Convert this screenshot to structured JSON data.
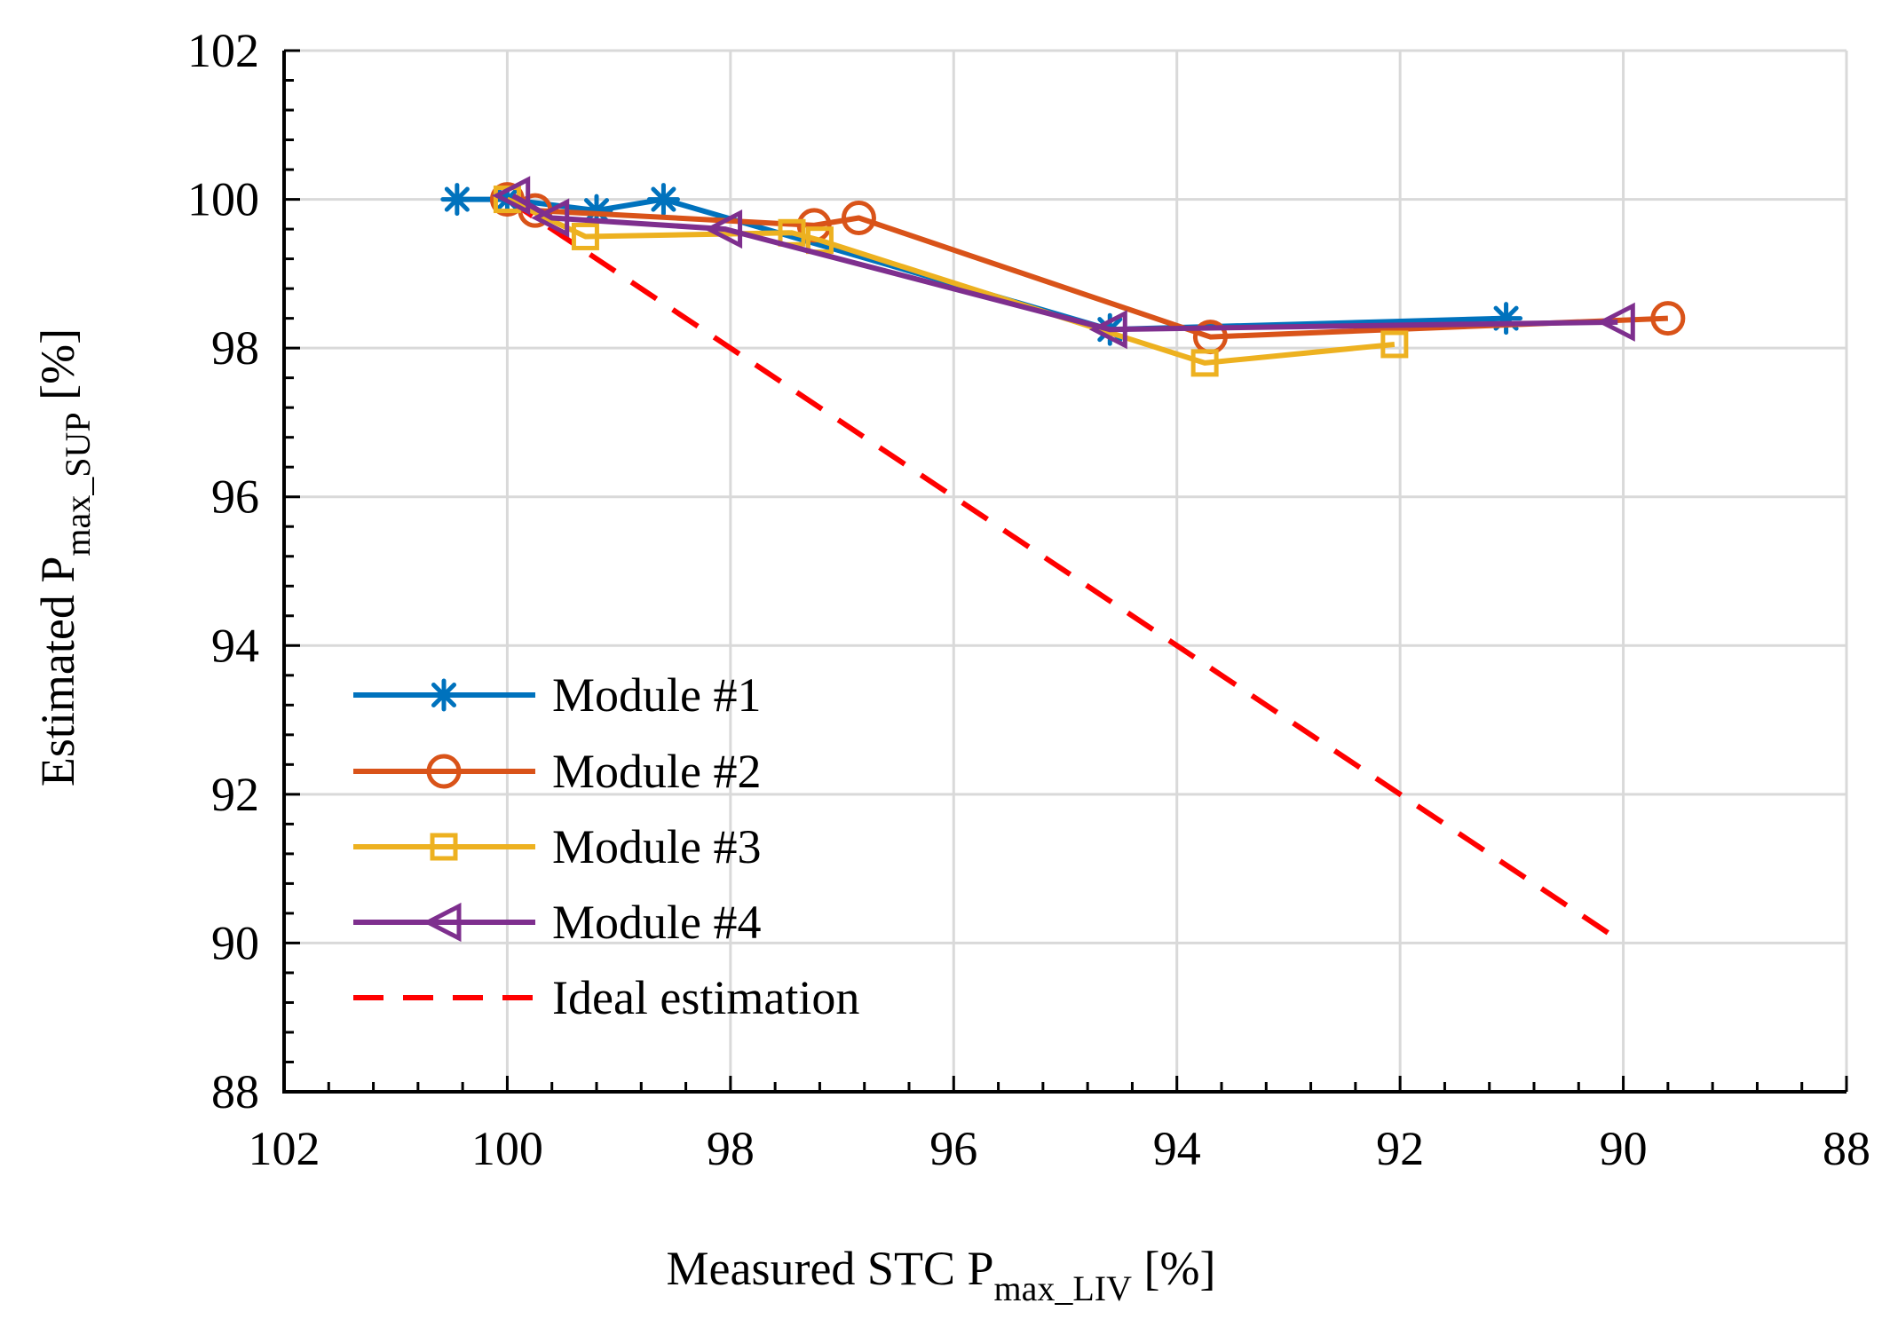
{
  "chart_data": {
    "type": "line",
    "title": "",
    "xlabel": {
      "main": "Measured STC P",
      "sub": "max_LIV",
      "unit": " [%]"
    },
    "ylabel": {
      "main": "Estimated P",
      "sub": "max_SUP",
      "unit": " [%]"
    },
    "xlim": [
      102,
      88
    ],
    "ylim": [
      88,
      102
    ],
    "x_inverted": true,
    "xticks": [
      102,
      100,
      98,
      96,
      94,
      92,
      90,
      88
    ],
    "yticks": [
      88,
      90,
      92,
      94,
      96,
      98,
      100,
      102
    ],
    "xtick_labels": [
      "102",
      "100",
      "98",
      "96",
      "94",
      "92",
      "90",
      "88"
    ],
    "ytick_labels": [
      "88",
      "90",
      "92",
      "94",
      "96",
      "98",
      "100",
      "102"
    ],
    "grid": true,
    "legend_position": "bottom-left",
    "series": [
      {
        "name": "Module #1",
        "color": "#0072BD",
        "marker": "asterisk",
        "x": [
          100.45,
          100.0,
          99.2,
          98.6,
          94.6,
          91.05
        ],
        "y": [
          100.0,
          100.0,
          99.85,
          100.0,
          98.25,
          98.4
        ]
      },
      {
        "name": "Module #2",
        "color": "#D95319",
        "marker": "circle",
        "x": [
          100.0,
          99.75,
          97.25,
          96.85,
          93.7,
          89.6
        ],
        "y": [
          100.0,
          99.85,
          99.65,
          99.75,
          98.15,
          98.4
        ]
      },
      {
        "name": "Module #3",
        "color": "#EDB120",
        "marker": "square",
        "x": [
          100.0,
          99.3,
          97.45,
          97.2,
          93.75,
          92.05
        ],
        "y": [
          100.0,
          99.5,
          99.55,
          99.45,
          97.8,
          98.05
        ]
      },
      {
        "name": "Module #4",
        "color": "#7E2F8E",
        "marker": "triangle-left",
        "x": [
          99.95,
          99.6,
          98.05,
          94.6,
          90.05
        ],
        "y": [
          100.05,
          99.75,
          99.6,
          98.25,
          98.35
        ]
      },
      {
        "name": "Ideal estimation",
        "color": "#FF0000",
        "marker": "none",
        "dashed": true,
        "x": [
          100.0,
          90.0
        ],
        "y": [
          100.0,
          90.0
        ]
      }
    ]
  }
}
